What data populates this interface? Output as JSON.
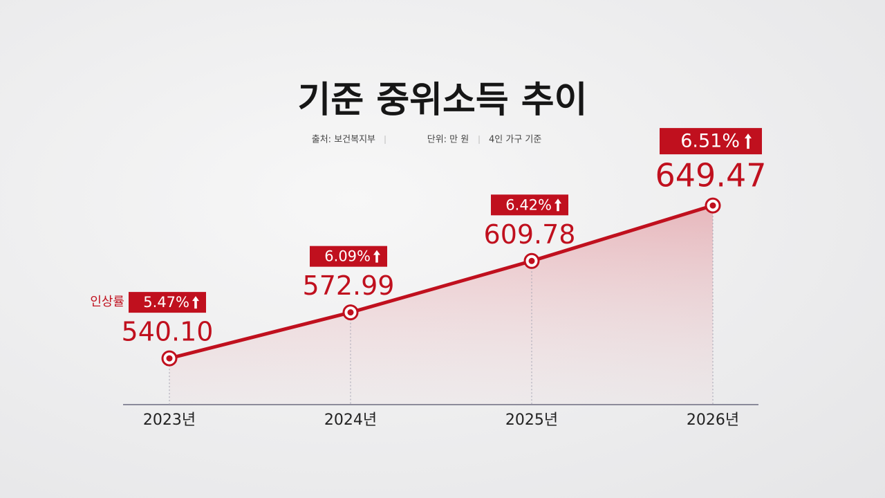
{
  "chart_data": {
    "type": "line",
    "title": "기준 중위소득 추이",
    "notes": [
      "출처: 보건복지부",
      "단위: 만 원",
      "4인 가구 기준"
    ],
    "categories": [
      "2023년",
      "2024년",
      "2025년",
      "2026년"
    ],
    "series": [
      {
        "name": "기준 중위소득",
        "color": "#c0101e",
        "values": [
          540.1,
          572.99,
          609.78,
          649.47
        ],
        "value_labels": [
          "540.10",
          "572.99",
          "609.78",
          "649.47"
        ]
      }
    ],
    "rates": {
      "name": "인상률",
      "values": [
        5.47,
        6.09,
        6.42,
        6.51
      ],
      "value_labels": [
        "5.47%",
        "6.09%",
        "6.42%",
        "6.51%"
      ]
    },
    "ylim": [
      507,
      700
    ]
  }
}
